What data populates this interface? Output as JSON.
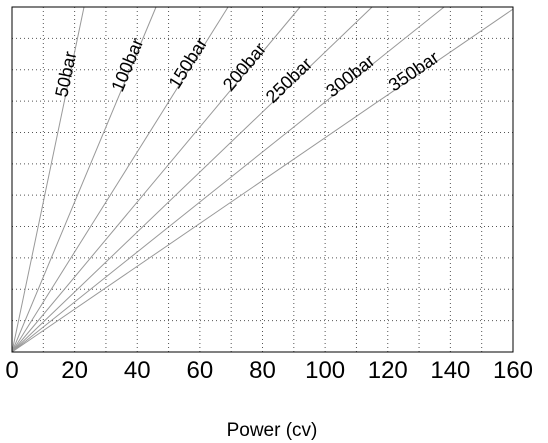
{
  "chart_data": {
    "type": "line",
    "xlabel": "Power (cv)",
    "ylabel": "",
    "title": "",
    "xlim": [
      0,
      160
    ],
    "x_ticks": [
      0,
      20,
      40,
      60,
      80,
      100,
      120,
      140,
      160
    ],
    "x_tick_labels": [
      "0",
      "20",
      "40",
      "60",
      "80",
      "100",
      "120",
      "140",
      "160"
    ],
    "ylim": [
      0,
      1
    ],
    "grid": true,
    "grid_style": "dotted",
    "series": [
      {
        "name": "50bar",
        "x": [
          0,
          23
        ],
        "y": [
          0,
          1.0
        ]
      },
      {
        "name": "100bar",
        "x": [
          0,
          46
        ],
        "y": [
          0,
          1.0
        ]
      },
      {
        "name": "150bar",
        "x": [
          0,
          69
        ],
        "y": [
          0,
          1.0
        ]
      },
      {
        "name": "200bar",
        "x": [
          0,
          92
        ],
        "y": [
          0,
          1.0
        ]
      },
      {
        "name": "250bar",
        "x": [
          0,
          115
        ],
        "y": [
          0,
          1.0
        ]
      },
      {
        "name": "300bar",
        "x": [
          0,
          138
        ],
        "y": [
          0,
          1.0
        ]
      },
      {
        "name": "350bar",
        "x": [
          0,
          161
        ],
        "y": [
          0,
          1.0
        ]
      }
    ]
  },
  "colors": {
    "line": "#999999",
    "grid": "#555555",
    "frame": "#000000",
    "background": "#ffffff"
  }
}
